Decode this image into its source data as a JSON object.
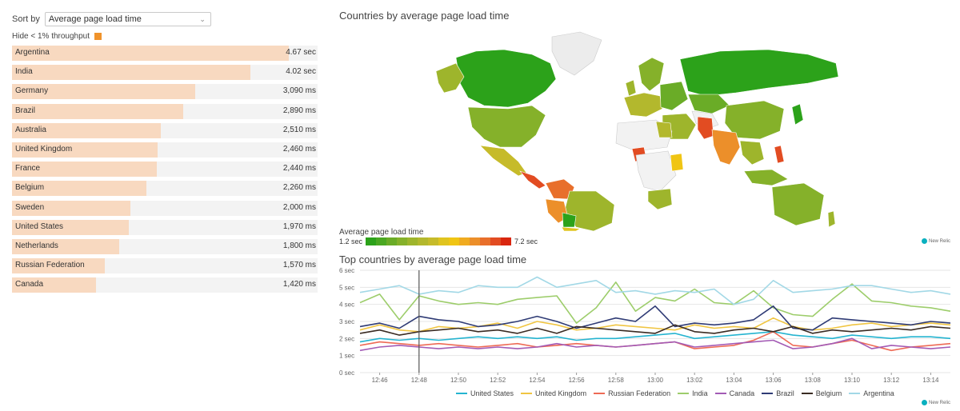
{
  "controls": {
    "sort_label": "Sort by",
    "sort_value": "Average page load time",
    "hide_label": "Hide < 1% throughput",
    "hide_color": "#f0932b"
  },
  "bar_color": "#f8d9c0",
  "bars": [
    {
      "name": "Argentina",
      "value_label": "4.67 sec",
      "value_ms": 4670
    },
    {
      "name": "India",
      "value_label": "4.02 sec",
      "value_ms": 4020
    },
    {
      "name": "Germany",
      "value_label": "3,090 ms",
      "value_ms": 3090
    },
    {
      "name": "Brazil",
      "value_label": "2,890 ms",
      "value_ms": 2890
    },
    {
      "name": "Australia",
      "value_label": "2,510 ms",
      "value_ms": 2510
    },
    {
      "name": "United Kingdom",
      "value_label": "2,460 ms",
      "value_ms": 2460
    },
    {
      "name": "France",
      "value_label": "2,440 ms",
      "value_ms": 2440
    },
    {
      "name": "Belgium",
      "value_label": "2,260 ms",
      "value_ms": 2260
    },
    {
      "name": "Sweden",
      "value_label": "2,000 ms",
      "value_ms": 2000
    },
    {
      "name": "United States",
      "value_label": "1,970 ms",
      "value_ms": 1970
    },
    {
      "name": "Netherlands",
      "value_label": "1,800 ms",
      "value_ms": 1800
    },
    {
      "name": "Russian Federation",
      "value_label": "1,570 ms",
      "value_ms": 1570
    },
    {
      "name": "Canada",
      "value_label": "1,420 ms",
      "value_ms": 1420
    }
  ],
  "map": {
    "title": "Countries by average page load time",
    "legend_title": "Average page load time",
    "scale_min": "1.2 sec",
    "scale_max": "7.2 sec",
    "scale_colors": [
      "#2ca21a",
      "#4aa822",
      "#6aac27",
      "#85b12a",
      "#9eb52c",
      "#b3b82d",
      "#c6bb2a",
      "#e0c41f",
      "#f0c514",
      "#f0ab20",
      "#ec8f2a",
      "#e86f2b",
      "#e24c22",
      "#d9260f"
    ],
    "brand": "New Relic"
  },
  "chart_data": {
    "type": "line",
    "title": "Top countries by average page load time",
    "y_unit": "sec",
    "y_ticks": [
      0,
      1,
      2,
      3,
      4,
      5,
      6
    ],
    "ylim": [
      0,
      6
    ],
    "x_ticks": [
      "12:46",
      "12:48",
      "12:50",
      "12:52",
      "12:54",
      "12:56",
      "12:58",
      "13:00",
      "13:02",
      "13:04",
      "13:06",
      "13:08",
      "13:10",
      "13:12",
      "13:14"
    ],
    "x": [
      "12:45",
      "12:46",
      "12:47",
      "12:48",
      "12:49",
      "12:50",
      "12:51",
      "12:52",
      "12:53",
      "12:54",
      "12:55",
      "12:56",
      "12:57",
      "12:58",
      "12:59",
      "13:00",
      "13:01",
      "13:02",
      "13:03",
      "13:04",
      "13:05",
      "13:06",
      "13:07",
      "13:08",
      "13:09",
      "13:10",
      "13:11",
      "13:12",
      "13:13",
      "13:14",
      "13:15"
    ],
    "cursor_x": "12:48",
    "series": [
      {
        "name": "United States",
        "color": "#25b4d0",
        "values": [
          1.8,
          2.0,
          1.9,
          2.0,
          1.9,
          2.0,
          2.1,
          2.0,
          2.1,
          2.0,
          2.1,
          1.9,
          2.0,
          2.0,
          2.1,
          2.2,
          2.3,
          2.0,
          2.1,
          2.2,
          2.3,
          2.4,
          2.2,
          2.1,
          2.0,
          2.2,
          2.1,
          2.0,
          2.1,
          2.1,
          2.0
        ]
      },
      {
        "name": "United Kingdom",
        "color": "#f0c542",
        "values": [
          2.5,
          2.8,
          2.5,
          2.4,
          2.7,
          2.6,
          2.7,
          2.9,
          2.6,
          3.0,
          2.8,
          2.5,
          2.6,
          2.8,
          2.7,
          2.6,
          2.5,
          2.8,
          2.6,
          2.7,
          2.6,
          3.2,
          2.7,
          2.5,
          2.6,
          2.8,
          2.9,
          2.7,
          2.8,
          2.9,
          2.8
        ]
      },
      {
        "name": "Russian Federation",
        "color": "#ee6a55",
        "values": [
          1.6,
          1.8,
          1.7,
          1.6,
          1.7,
          1.6,
          1.5,
          1.6,
          1.7,
          1.5,
          1.6,
          1.7,
          1.6,
          1.5,
          1.6,
          1.7,
          1.8,
          1.4,
          1.5,
          1.6,
          1.9,
          2.4,
          1.6,
          1.5,
          1.7,
          1.9,
          1.6,
          1.3,
          1.5,
          1.6,
          1.7
        ]
      },
      {
        "name": "India",
        "color": "#9dcd6b",
        "values": [
          4.1,
          4.6,
          3.1,
          4.5,
          4.2,
          4.0,
          4.1,
          4.0,
          4.3,
          4.4,
          4.5,
          2.9,
          3.8,
          5.3,
          3.6,
          4.4,
          4.2,
          4.9,
          4.1,
          4.0,
          4.8,
          3.8,
          3.4,
          3.3,
          4.3,
          5.2,
          4.2,
          4.1,
          3.9,
          3.8,
          3.6
        ]
      },
      {
        "name": "Canada",
        "color": "#a35bb5",
        "values": [
          1.3,
          1.5,
          1.6,
          1.5,
          1.4,
          1.5,
          1.4,
          1.5,
          1.4,
          1.5,
          1.7,
          1.5,
          1.6,
          1.5,
          1.6,
          1.7,
          1.8,
          1.5,
          1.6,
          1.7,
          1.8,
          1.9,
          1.4,
          1.5,
          1.7,
          2.0,
          1.4,
          1.6,
          1.5,
          1.4,
          1.5
        ]
      },
      {
        "name": "Brazil",
        "color": "#2f3b75",
        "values": [
          2.7,
          2.9,
          2.6,
          3.3,
          3.1,
          3.0,
          2.7,
          2.8,
          3.0,
          3.3,
          3.0,
          2.6,
          2.9,
          3.2,
          3.0,
          3.9,
          2.7,
          2.9,
          2.8,
          2.9,
          3.1,
          3.9,
          2.6,
          2.5,
          3.2,
          3.1,
          3.0,
          2.9,
          2.8,
          3.0,
          2.9
        ]
      },
      {
        "name": "Belgium",
        "color": "#3a2b22",
        "values": [
          2.3,
          2.5,
          2.2,
          2.4,
          2.5,
          2.6,
          2.4,
          2.5,
          2.3,
          2.6,
          2.3,
          2.7,
          2.6,
          2.5,
          2.4,
          2.3,
          2.8,
          2.4,
          2.3,
          2.5,
          2.6,
          2.4,
          2.7,
          2.3,
          2.5,
          2.4,
          2.5,
          2.6,
          2.5,
          2.7,
          2.6
        ]
      },
      {
        "name": "Argentina",
        "color": "#a2d8e6",
        "values": [
          4.7,
          4.9,
          5.1,
          4.6,
          4.8,
          4.7,
          5.1,
          5.0,
          5.0,
          5.6,
          5.0,
          5.2,
          5.4,
          4.7,
          4.8,
          4.6,
          4.8,
          4.7,
          4.9,
          4.0,
          4.3,
          5.4,
          4.7,
          4.8,
          4.9,
          5.1,
          5.1,
          4.9,
          4.7,
          4.8,
          4.6
        ]
      }
    ]
  }
}
